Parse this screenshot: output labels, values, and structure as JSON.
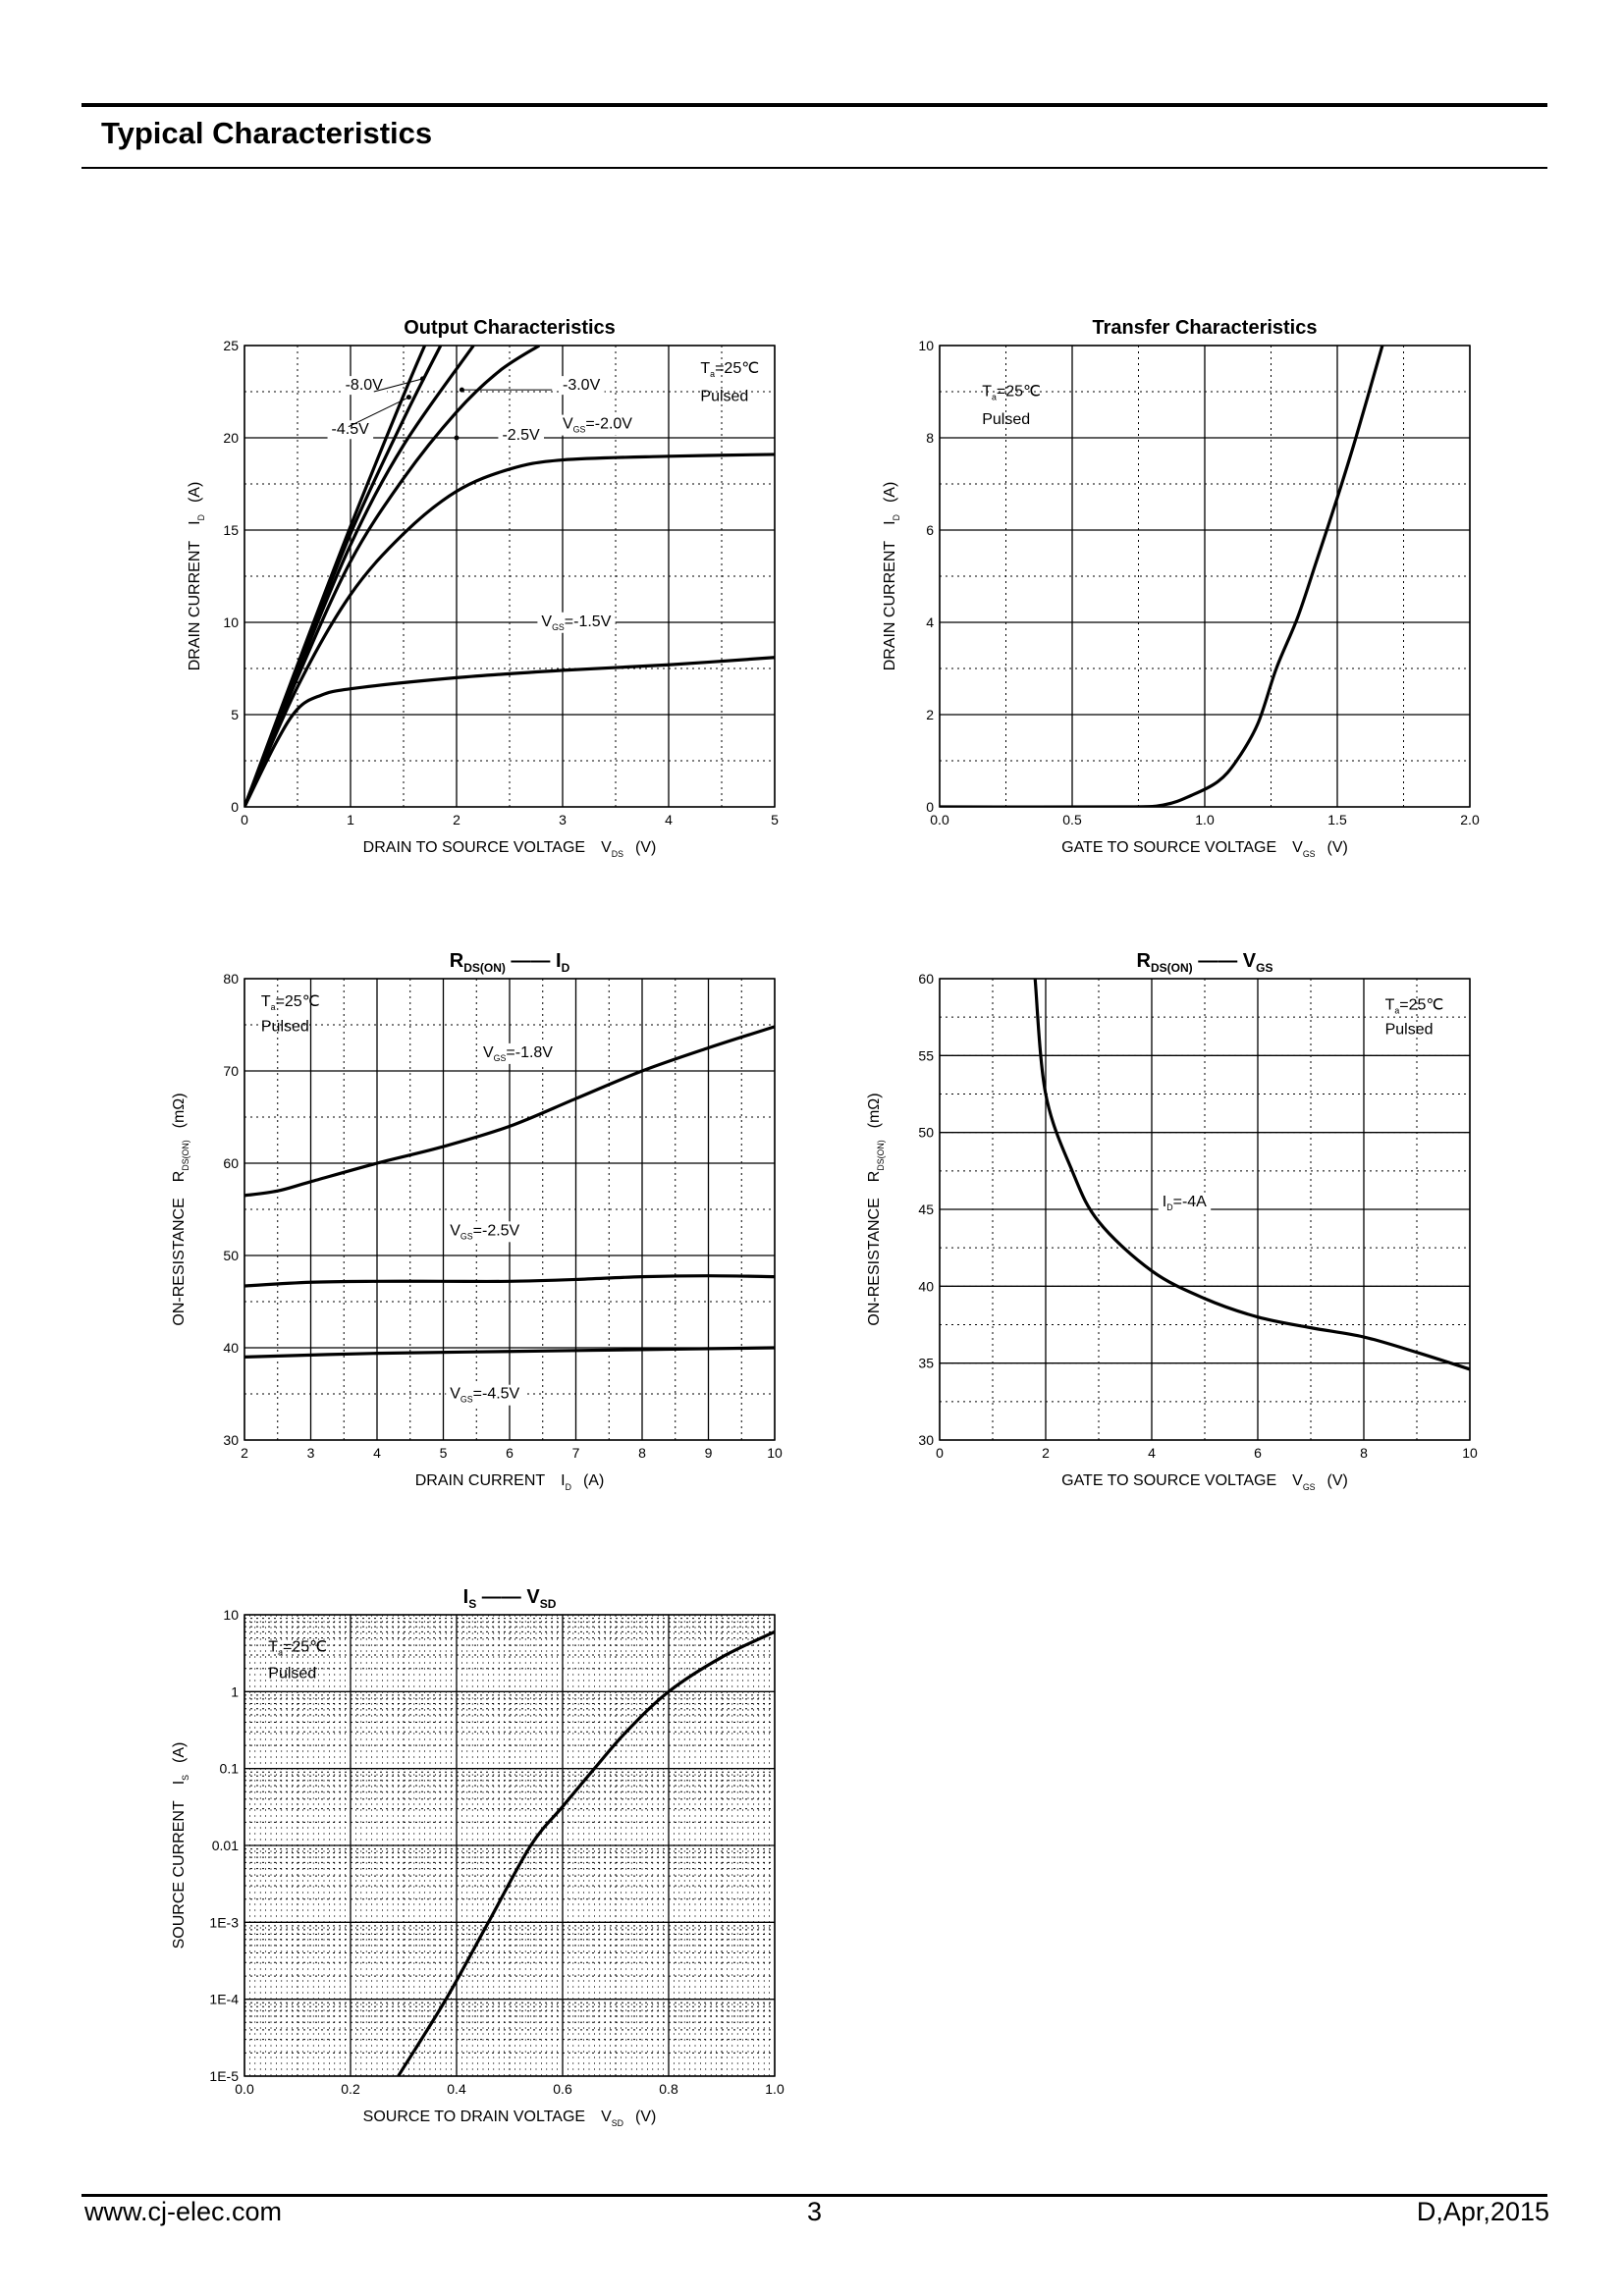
{
  "header": {
    "title": "Typical Characteristics"
  },
  "footer": {
    "website": "www.cj-elec.com",
    "page": "3",
    "revision": "D,Apr,2015"
  },
  "chart_data": [
    {
      "type": "line",
      "title": "Output Characteristics",
      "xlabel": "DRAIN TO SOURCE VOLTAGE",
      "xlabel_sym": "V",
      "xlabel_sub": "DS",
      "xlabel_unit": "(V)",
      "ylabel": "DRAIN CURRENT",
      "ylabel_sym": "I",
      "ylabel_sub": "D",
      "ylabel_unit": "(A)",
      "xlim": [
        0,
        5
      ],
      "ylim": [
        0,
        25
      ],
      "xmajor": 1,
      "xminor": 0.5,
      "ymajor": 5,
      "yminor": 2.5,
      "xticks": [
        "0",
        "1",
        "2",
        "3",
        "4",
        "5"
      ],
      "yticks": [
        "0",
        "5",
        "10",
        "15",
        "20",
        "25"
      ],
      "grid": true,
      "series": [
        {
          "name": "-1.5V",
          "points": [
            [
              0,
              0
            ],
            [
              0.3,
              3.5
            ],
            [
              0.5,
              5.3
            ],
            [
              0.7,
              6
            ],
            [
              1,
              6.4
            ],
            [
              2,
              7
            ],
            [
              3,
              7.4
            ],
            [
              4,
              7.7
            ],
            [
              5,
              8.1
            ]
          ]
        },
        {
          "name": "-2.0V",
          "points": [
            [
              0,
              0
            ],
            [
              0.5,
              6.5
            ],
            [
              1,
              11.5
            ],
            [
              1.5,
              14.8
            ],
            [
              2,
              17.1
            ],
            [
              2.5,
              18.3
            ],
            [
              3,
              18.8
            ],
            [
              4,
              19
            ],
            [
              5,
              19.1
            ]
          ]
        },
        {
          "name": "-2.5V",
          "points": [
            [
              0,
              0
            ],
            [
              0.5,
              7
            ],
            [
              1,
              13.3
            ],
            [
              1.5,
              17.8
            ],
            [
              2,
              21.4
            ],
            [
              2.4,
              23.6
            ],
            [
              2.78,
              25
            ]
          ]
        },
        {
          "name": "-3.0V",
          "points": [
            [
              0,
              0
            ],
            [
              0.5,
              7.3
            ],
            [
              1,
              14.2
            ],
            [
              1.5,
              19.6
            ],
            [
              2.16,
              25
            ]
          ]
        },
        {
          "name": "-4.5V",
          "points": [
            [
              0,
              0
            ],
            [
              0.5,
              7.5
            ],
            [
              1,
              14.8
            ],
            [
              1.5,
              21
            ],
            [
              1.85,
              25
            ]
          ]
        },
        {
          "name": "-8.0V",
          "points": [
            [
              0,
              0
            ],
            [
              0.5,
              7.7
            ],
            [
              1,
              15.2
            ],
            [
              1.5,
              22.3
            ],
            [
              1.7,
              25
            ]
          ]
        }
      ],
      "annotations": [
        {
          "text": "-8.0V",
          "at": [
            0.95,
            22.6
          ]
        },
        {
          "text": "-4.5V",
          "at": [
            0.82,
            20.2
          ]
        },
        {
          "text": "-3.0V",
          "at": [
            3.0,
            22.6
          ]
        },
        {
          "text": "-2.5V",
          "at": [
            2.43,
            19.9
          ]
        },
        {
          "text": "VGS=-2.0V",
          "at": [
            3.0,
            20.5
          ]
        },
        {
          "text": "VGS=-1.5V",
          "at": [
            2.8,
            9.8
          ]
        },
        {
          "text": "Ta=25℃",
          "at": [
            4.3,
            23.5
          ]
        },
        {
          "text": "Pulsed",
          "at": [
            4.3,
            22
          ]
        }
      ]
    },
    {
      "type": "line",
      "title": "Transfer Characteristics",
      "xlabel": "GATE TO SOURCE VOLTAGE",
      "xlabel_sym": "V",
      "xlabel_sub": "GS",
      "xlabel_unit": "(V)",
      "ylabel": "DRAIN CURRENT",
      "ylabel_sym": "I",
      "ylabel_sub": "D",
      "ylabel_unit": "(A)",
      "xlim": [
        0,
        2
      ],
      "ylim": [
        0,
        10
      ],
      "xmajor": 0.5,
      "xminor": 0.25,
      "ymajor": 2,
      "yminor": 1,
      "xticks": [
        "0.0",
        "0.5",
        "1.0",
        "1.5",
        "2.0"
      ],
      "yticks": [
        "0",
        "2",
        "4",
        "6",
        "8",
        "10"
      ],
      "grid": true,
      "series": [
        {
          "name": "ID",
          "points": [
            [
              0,
              0
            ],
            [
              0.7,
              0
            ],
            [
              0.85,
              0.05
            ],
            [
              0.95,
              0.25
            ],
            [
              1.05,
              0.55
            ],
            [
              1.12,
              1
            ],
            [
              1.2,
              1.8
            ],
            [
              1.27,
              3
            ],
            [
              1.35,
              4.1
            ],
            [
              1.42,
              5.3
            ],
            [
              1.5,
              6.7
            ],
            [
              1.57,
              8
            ],
            [
              1.67,
              10
            ]
          ]
        }
      ],
      "annotations": [
        {
          "text": "Ta=25℃",
          "at": [
            0.16,
            8.9
          ]
        },
        {
          "text": "Pulsed",
          "at": [
            0.16,
            8.3
          ]
        }
      ]
    },
    {
      "type": "line",
      "title": "RDS(ON) — ID",
      "title_a": "R",
      "title_a_sub": "DS(ON)",
      "title_b": "I",
      "title_b_sub": "D",
      "xlabel": "DRAIN CURRENT",
      "xlabel_sym": "I",
      "xlabel_sub": "D",
      "xlabel_unit": "(A)",
      "ylabel": "ON-RESISTANCE",
      "ylabel_sym": "R",
      "ylabel_sub": "DS(ON)",
      "ylabel_unit": "(mΩ)",
      "xlim": [
        2,
        10
      ],
      "ylim": [
        30,
        80
      ],
      "xmajor": 1,
      "xminor": 0.5,
      "ymajor": 10,
      "yminor": 5,
      "xticks": [
        "2",
        "3",
        "4",
        "5",
        "6",
        "7",
        "8",
        "9",
        "10"
      ],
      "yticks": [
        "30",
        "40",
        "50",
        "60",
        "70",
        "80"
      ],
      "grid": true,
      "series": [
        {
          "name": "-1.8V",
          "points": [
            [
              2,
              56.5
            ],
            [
              2.5,
              57
            ],
            [
              3,
              58
            ],
            [
              4,
              60
            ],
            [
              5,
              61.8
            ],
            [
              6,
              64
            ],
            [
              7,
              67
            ],
            [
              8,
              70
            ],
            [
              9,
              72.5
            ],
            [
              10,
              74.8
            ]
          ]
        },
        {
          "name": "-2.5V",
          "points": [
            [
              2,
              46.7
            ],
            [
              3,
              47.1
            ],
            [
              4,
              47.2
            ],
            [
              5,
              47.2
            ],
            [
              6,
              47.2
            ],
            [
              7,
              47.4
            ],
            [
              8,
              47.7
            ],
            [
              9,
              47.8
            ],
            [
              10,
              47.7
            ]
          ]
        },
        {
          "name": "-4.5V",
          "points": [
            [
              2,
              39
            ],
            [
              4,
              39.4
            ],
            [
              6,
              39.6
            ],
            [
              8,
              39.8
            ],
            [
              10,
              40
            ]
          ]
        }
      ],
      "annotations": [
        {
          "text": "VGS=-1.8V",
          "at": [
            5.6,
            71.5
          ]
        },
        {
          "text": "VGS=-2.5V",
          "at": [
            5.1,
            52.2
          ]
        },
        {
          "text": "VGS=-4.5V",
          "at": [
            5.1,
            34.5
          ]
        },
        {
          "text": "Ta=25℃",
          "at": [
            2.25,
            77
          ]
        },
        {
          "text": "Pulsed",
          "at": [
            2.25,
            74.3
          ]
        }
      ]
    },
    {
      "type": "line",
      "title": "RDS(ON) — VGS",
      "title_a": "R",
      "title_a_sub": "DS(ON)",
      "title_b": "V",
      "title_b_sub": "GS",
      "xlabel": "GATE TO SOURCE VOLTAGE",
      "xlabel_sym": "V",
      "xlabel_sub": "GS",
      "xlabel_unit": "(V)",
      "ylabel": "ON-RESISTANCE",
      "ylabel_sym": "R",
      "ylabel_sub": "DS(ON)",
      "ylabel_unit": "(mΩ)",
      "xlim": [
        0,
        10
      ],
      "ylim": [
        30,
        60
      ],
      "xmajor": 2,
      "xminor": 1,
      "ymajor": 5,
      "yminor": 2.5,
      "xticks": [
        "0",
        "2",
        "4",
        "6",
        "8",
        "10"
      ],
      "yticks": [
        "30",
        "35",
        "40",
        "45",
        "50",
        "55",
        "60"
      ],
      "grid": true,
      "series": [
        {
          "name": "ID=-4A",
          "points": [
            [
              1.8,
              60
            ],
            [
              2,
              52.5
            ],
            [
              2.5,
              47.5
            ],
            [
              3,
              44.2
            ],
            [
              4,
              41
            ],
            [
              5,
              39.2
            ],
            [
              6,
              38
            ],
            [
              7,
              37.3
            ],
            [
              8,
              36.7
            ],
            [
              9,
              35.7
            ],
            [
              10,
              34.6
            ]
          ]
        }
      ],
      "annotations": [
        {
          "text": "ID=-4A",
          "at": [
            4.2,
            45.2
          ]
        },
        {
          "text": "Ta=25℃",
          "at": [
            8.4,
            58
          ]
        },
        {
          "text": "Pulsed",
          "at": [
            8.4,
            56.4
          ]
        }
      ]
    },
    {
      "type": "line",
      "title": "IS — VSD",
      "title_a": "I",
      "title_a_sub": "S",
      "title_b": "V",
      "title_b_sub": "SD",
      "xlabel": "SOURCE TO DRAIN VOLTAGE",
      "xlabel_sym": "V",
      "xlabel_sub": "SD",
      "xlabel_unit": "(V)",
      "ylabel": "SOURCE CURRENT",
      "ylabel_sym": "I",
      "ylabel_sub": "S",
      "ylabel_unit": "(A)",
      "xlim": [
        0,
        1
      ],
      "ylim": [
        1e-05,
        10
      ],
      "yscale": "log",
      "xmajor": 0.2,
      "xminor": 0.1,
      "xticks": [
        "0.0",
        "0.2",
        "0.4",
        "0.6",
        "0.8",
        "1.0"
      ],
      "yticks": [
        "1E-5",
        "1E-4",
        "1E-3",
        "0.01",
        "0.1",
        "1",
        "10"
      ],
      "grid": true,
      "series": [
        {
          "name": "IS",
          "points": [
            [
              0.29,
              1e-05
            ],
            [
              0.38,
              0.0001
            ],
            [
              0.46,
              0.001
            ],
            [
              0.54,
              0.01
            ],
            [
              0.6,
              0.032
            ],
            [
              0.66,
              0.1
            ],
            [
              0.72,
              0.3
            ],
            [
              0.8,
              1
            ],
            [
              0.9,
              2.8
            ],
            [
              1,
              6
            ]
          ]
        }
      ],
      "annotations": [
        {
          "text": "Ta=25℃",
          "at": [
            0.045,
            3.3
          ]
        },
        {
          "text": "Pulsed",
          "at": [
            0.045,
            1.5
          ]
        }
      ]
    }
  ]
}
